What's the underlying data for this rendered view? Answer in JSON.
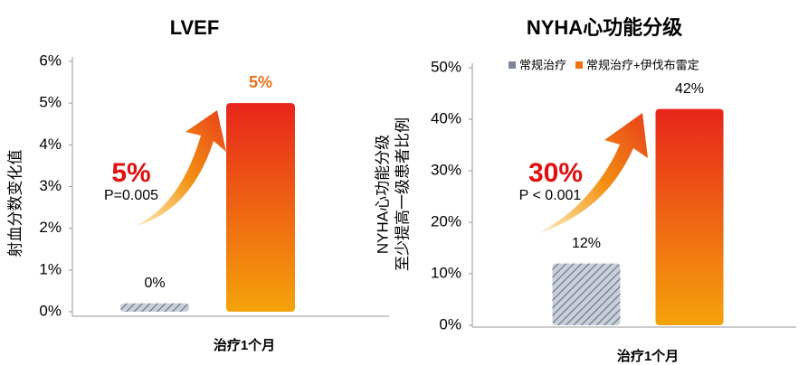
{
  "chart_data": [
    {
      "type": "bar",
      "title": "LVEF",
      "y_label": [
        "射血分数变化值"
      ],
      "categories": [
        "治疗1个月"
      ],
      "series": [
        {
          "color": "#a8b2c0",
          "pattern": "hatch",
          "values": [
            0.2
          ],
          "value_labels": [
            "0%"
          ]
        },
        {
          "color": "#e8251b",
          "pattern": "gradient",
          "values": [
            5
          ],
          "value_labels": [
            "5%"
          ]
        }
      ],
      "ylim": [
        0,
        6
      ],
      "yticks": [
        {
          "value": 0,
          "label": "0%"
        },
        {
          "value": 1,
          "label": "1%"
        },
        {
          "value": 2,
          "label": "2%"
        },
        {
          "value": 3,
          "label": "3%"
        },
        {
          "value": 4,
          "label": "4%"
        },
        {
          "value": 5,
          "label": "5%"
        },
        {
          "value": 6,
          "label": "6%"
        }
      ],
      "annotation": "5%",
      "p_value": "P=0.005",
      "legend": false
    },
    {
      "type": "bar",
      "title": "NYHA心功能分级",
      "y_label": [
        "NYHA心功能分级",
        "至少提高一级患者比例"
      ],
      "categories": [
        "治疗1个月"
      ],
      "series": [
        {
          "name": "常规治疗",
          "color": "#a8b2c0",
          "pattern": "hatch",
          "values": [
            12
          ],
          "value_labels": [
            "12%"
          ]
        },
        {
          "name": "常规治疗+伊伐布雷定",
          "color": "#e8251b",
          "pattern": "gradient",
          "values": [
            42
          ],
          "value_labels": [
            "42%"
          ]
        }
      ],
      "ylim": [
        0,
        50
      ],
      "yticks": [
        {
          "value": 0,
          "label": "0%"
        },
        {
          "value": 10,
          "label": "10%"
        },
        {
          "value": 20,
          "label": "20%"
        },
        {
          "value": 30,
          "label": "30%"
        },
        {
          "value": 40,
          "label": "40%"
        },
        {
          "value": 50,
          "label": "50%"
        }
      ],
      "annotation": "30%",
      "p_value": "P < 0.001",
      "legend": true
    }
  ]
}
